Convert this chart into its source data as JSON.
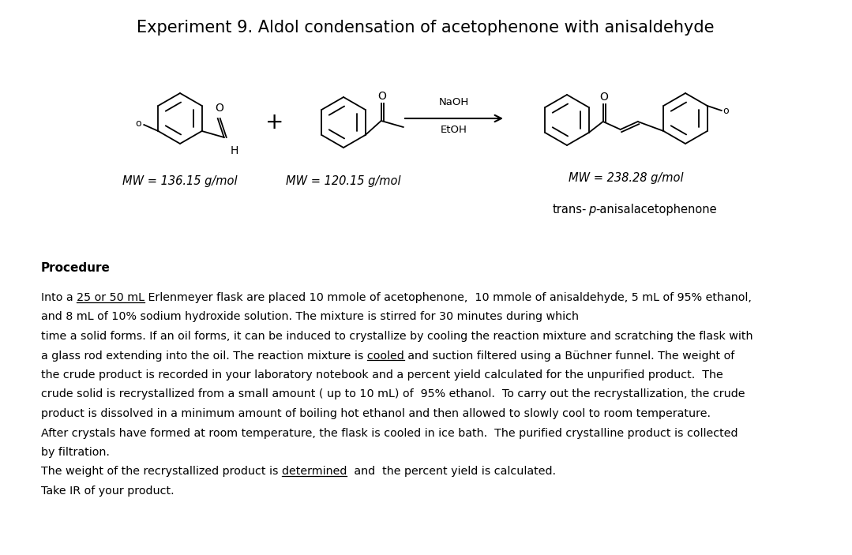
{
  "title": "Experiment 9. Aldol condensation of acetophenone with anisaldehyde",
  "title_fontsize": 15,
  "bg_color": "#ffffff",
  "mw1": "MW = 136.15 g/mol",
  "mw2": "MW = 120.15 g/mol",
  "mw3": "MW = 238.28 g/mol",
  "reagents_line1": "NaOH",
  "reagents_line2": "EtOH",
  "procedure_header": "Procedure",
  "proc_line0": "",
  "proc_line1": "Into a 25 or 50 mL Erlenmeyer flask are placed 10 mmole of acetophenone,  10 mmole of anisaldehyde, 5 mL of 95% ethanol,",
  "proc_line2": "and 8 mL of 10% sodium hydroxide solution. The mixture is stirred for 30 minutes during which",
  "proc_line3": "time a solid forms. If an oil forms, it can be induced to crystallize by cooling the reaction mixture and scratching the flask with",
  "proc_line4": "a glass rod extending into the oil. The reaction mixture is cooled and suction filtered using a Büchner funnel. The weight of",
  "proc_line5": "the crude product is recorded in your laboratory notebook and a percent yield calculated for the unpurified product.  The",
  "proc_line6": "crude solid is recrystallized from a small amount ( up to 10 mL) of  95% ethanol.  To carry out the recrystallization, the crude",
  "proc_line7": "product is dissolved in a minimum amount of boiling hot ethanol and then allowed to slowly cool to room temperature.",
  "proc_line8": "After crystals have formed at room temperature, the flask is cooled in ice bath.  The purified crystalline product is collected",
  "proc_line9": "by filtration.",
  "proc_line10": "The weight of the recrystallized product is determined  and  the percent yield is calculated.",
  "proc_line11": "Take IR of your product.",
  "ul1_text": "25 or 50 mL",
  "ul1_prefix": "Into a ",
  "ul4_text": "cooled",
  "ul4_prefix": "a glass rod extending into the oil. The reaction mixture is ",
  "ul10_text": "determined",
  "ul10_prefix": "The weight of the recrystallized product is "
}
